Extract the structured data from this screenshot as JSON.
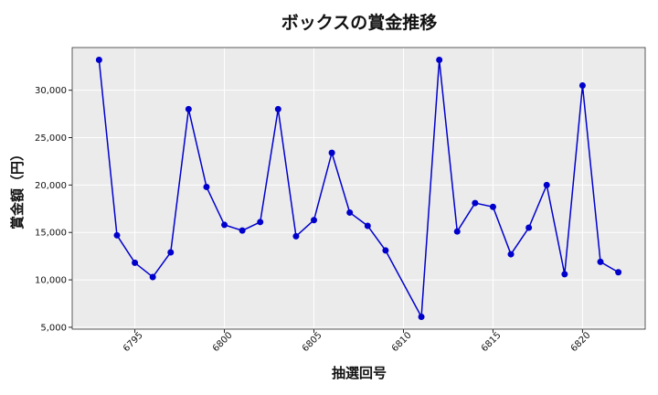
{
  "chart_data": {
    "type": "line",
    "title": "ボックスの賞金推移",
    "xlabel": "抽選回号",
    "ylabel": "賞金額（円）",
    "x": [
      6793,
      6794,
      6795,
      6796,
      6797,
      6798,
      6799,
      6800,
      6801,
      6802,
      6803,
      6804,
      6805,
      6806,
      6807,
      6808,
      6809,
      6811,
      6812,
      6813,
      6814,
      6815,
      6816,
      6817,
      6818,
      6819,
      6820,
      6821,
      6822
    ],
    "series": [
      {
        "values": [
          33200,
          14700,
          11800,
          10300,
          12900,
          28000,
          19800,
          15800,
          15200,
          16100,
          28000,
          14600,
          16300,
          23400,
          17100,
          15700,
          13100,
          6100,
          33200,
          15100,
          18100,
          17700,
          12700,
          15500,
          20000,
          10600,
          30500,
          11900,
          10800
        ],
        "color": "#0000cc"
      }
    ],
    "xlim": [
      6791.5,
      6823.5
    ],
    "ylim": [
      4800,
      34500
    ],
    "x_ticks": [
      6795,
      6800,
      6805,
      6810,
      6815,
      6820
    ],
    "x_tick_labels": [
      "6795",
      "6800",
      "6805",
      "6810",
      "6815",
      "6820"
    ],
    "y_ticks": [
      5000,
      10000,
      15000,
      20000,
      25000,
      30000
    ],
    "y_tick_labels": [
      "5,000",
      "10,000",
      "15,000",
      "20,000",
      "25,000",
      "30,000"
    ],
    "grid": true,
    "plot_background": "#ebebeb"
  }
}
